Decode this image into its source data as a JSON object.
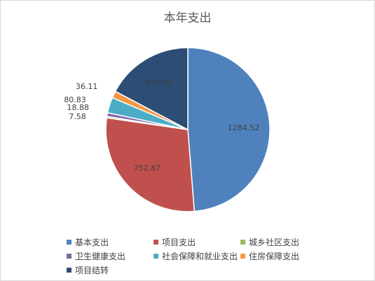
{
  "chart_data": {
    "type": "pie",
    "title": "本年支出",
    "start_angle_deg": 0,
    "direction": "clockwise",
    "legend_position": "bottom",
    "slices": [
      {
        "name": "基本支出",
        "value": 1284.52,
        "label": "1284.52",
        "color": "#4F81BD"
      },
      {
        "name": "项目支出",
        "value": 752.87,
        "label": "752.87",
        "color": "#C0504D"
      },
      {
        "name": "城乡社区支出",
        "value": 7.58,
        "label": "7.58",
        "color": "#9BBB59"
      },
      {
        "name": "卫生健康支出",
        "value": 18.88,
        "label": "18.88",
        "color": "#8064A2"
      },
      {
        "name": "社会保障和就业支出",
        "value": 80.83,
        "label": "80.83",
        "color": "#4BACC6"
      },
      {
        "name": "住房保障支出",
        "value": 36.11,
        "label": "36.11",
        "color": "#F79646"
      },
      {
        "name": "项目结转",
        "value": 454.84,
        "label": "454.84",
        "color": "#2C4D75"
      }
    ]
  }
}
